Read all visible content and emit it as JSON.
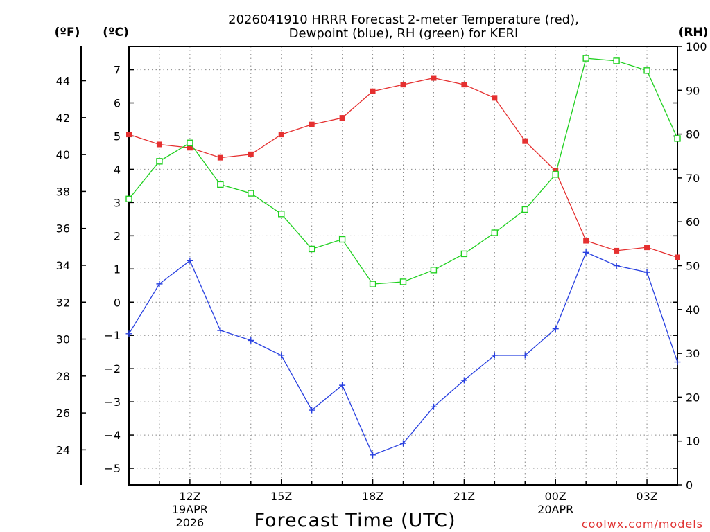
{
  "chart_data": {
    "type": "line",
    "title_line1": "2026041910 HRRR Forecast 2-meter Temperature (red),",
    "title_line2": "Dewpoint (blue), RH (green) for KERI",
    "xlabel": "Forecast Time (UTC)",
    "unit_f": "(ºF)",
    "unit_c": "(ºC)",
    "unit_rh": "(RH)",
    "watermark": "coolwx.com/models",
    "x_hours": [
      10,
      11,
      12,
      13,
      14,
      15,
      16,
      17,
      18,
      19,
      20,
      21,
      22,
      23,
      24,
      25,
      26,
      27,
      28
    ],
    "x_ticks": [
      {
        "hour": 12,
        "label": "12Z",
        "sub1": "19APR",
        "sub2": "2026"
      },
      {
        "hour": 15,
        "label": "15Z",
        "sub1": "",
        "sub2": ""
      },
      {
        "hour": 18,
        "label": "18Z",
        "sub1": "",
        "sub2": ""
      },
      {
        "hour": 21,
        "label": "21Z",
        "sub1": "",
        "sub2": ""
      },
      {
        "hour": 24,
        "label": "00Z",
        "sub1": "20APR",
        "sub2": ""
      },
      {
        "hour": 27,
        "label": "03Z",
        "sub1": "",
        "sub2": ""
      }
    ],
    "xlim": [
      10,
      28
    ],
    "c_range": [
      -5.5,
      7.7
    ],
    "c_ticks": [
      -5,
      -4,
      -3,
      -2,
      -1,
      0,
      1,
      2,
      3,
      4,
      5,
      6,
      7
    ],
    "f_ticks": [
      24,
      26,
      28,
      30,
      32,
      34,
      36,
      38,
      40,
      42,
      44
    ],
    "rh_range": [
      0,
      100
    ],
    "rh_ticks": [
      0,
      10,
      20,
      30,
      40,
      50,
      60,
      70,
      80,
      90,
      100
    ],
    "series": [
      {
        "name": "Temperature",
        "unit": "C",
        "color": "#e53030",
        "values": [
          5.05,
          4.75,
          4.65,
          4.35,
          4.45,
          5.05,
          5.35,
          5.55,
          6.35,
          6.55,
          6.75,
          6.55,
          6.15,
          4.85,
          3.95,
          1.85,
          1.55,
          1.65,
          1.35
        ]
      },
      {
        "name": "Dewpoint",
        "unit": "C",
        "color": "#2840e0",
        "values": [
          -0.95,
          0.55,
          1.25,
          -0.85,
          -1.15,
          -1.6,
          -3.25,
          -2.5,
          -4.6,
          -4.25,
          -3.15,
          -2.35,
          -1.6,
          -1.6,
          -0.8,
          1.5,
          1.1,
          0.9,
          -1.8
        ]
      },
      {
        "name": "RH",
        "unit": "%",
        "color": "#20d020",
        "values": [
          65.2,
          73.8,
          78.0,
          68.5,
          66.5,
          61.8,
          53.8,
          56.0,
          45.8,
          46.3,
          49.0,
          52.7,
          57.5,
          62.8,
          70.8,
          97.3,
          96.7,
          94.5,
          79.0
        ]
      }
    ]
  }
}
